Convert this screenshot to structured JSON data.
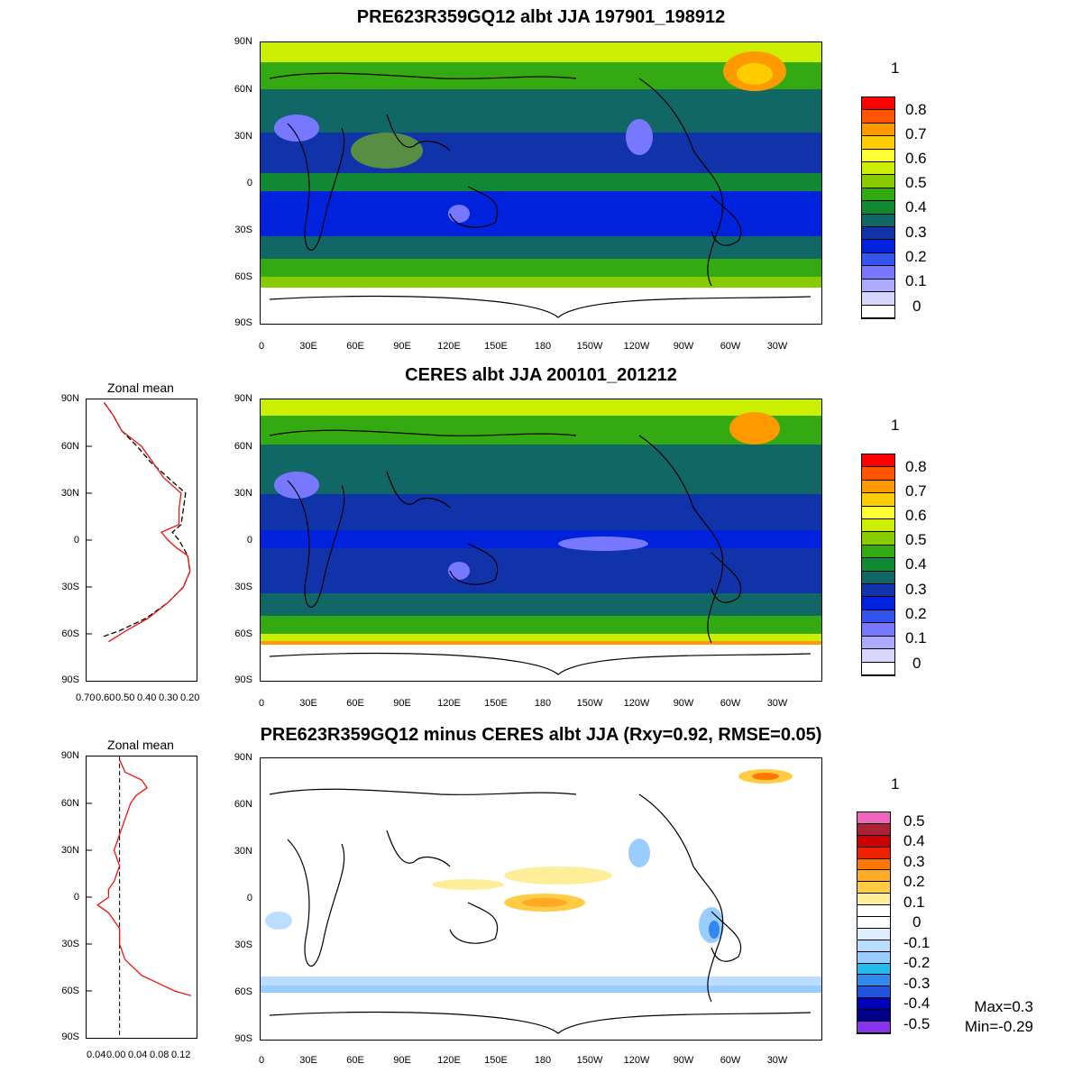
{
  "panels": [
    {
      "id": "model",
      "title": "PRE623R359GQ12 albt JJA 197901_198912",
      "unit_label": "1"
    },
    {
      "id": "obs",
      "title": "CERES albt JJA 200101_201212",
      "unit_label": "1",
      "zonal_title": "Zonal mean"
    },
    {
      "id": "diff",
      "title": "PRE623R359GQ12 minus CERES albt JJA (Rxy=0.92, RMSE=0.05)",
      "unit_label": "1",
      "zonal_title": "Zonal mean",
      "stats": {
        "max": "Max=0.3",
        "min": "Min=-0.29"
      }
    }
  ],
  "lat_ticks": [
    "90N",
    "60N",
    "30N",
    "0",
    "30S",
    "60S",
    "90S"
  ],
  "lon_ticks": [
    "0",
    "30E",
    "60E",
    "90E",
    "120E",
    "150E",
    "180",
    "150W",
    "120W",
    "90W",
    "60W",
    "30W"
  ],
  "zonal_x_ticks_obs": [
    "0.70",
    "0.60",
    "0.50",
    "0.40",
    "0.30",
    "0.20"
  ],
  "zonal_x_ticks_diff": [
    "0.04",
    "0.00",
    "0.04",
    "0.08",
    "0.12"
  ],
  "colorbar_abs": {
    "labels": [
      "0.8",
      "0.7",
      "0.6",
      "0.5",
      "0.4",
      "0.3",
      "0.2",
      "0.1",
      "0"
    ],
    "colors": [
      "#ff0000",
      "#ff5500",
      "#ff9900",
      "#ffcc00",
      "#ffff33",
      "#ccee00",
      "#88cc00",
      "#33aa11",
      "#118833",
      "#116666",
      "#1133aa",
      "#0022dd",
      "#3355ee",
      "#7777ff",
      "#aaaaff",
      "#d6d6ff",
      "#ffffff"
    ]
  },
  "colorbar_diff": {
    "labels": [
      "0.5",
      "0.4",
      "0.3",
      "0.2",
      "0.1",
      "0",
      "-0.1",
      "-0.2",
      "-0.3",
      "-0.4",
      "-0.5"
    ],
    "colors": [
      "#ee66bb",
      "#aa2233",
      "#cc0000",
      "#ee2200",
      "#ff7700",
      "#ffaa22",
      "#ffcc44",
      "#ffee99",
      "#ffffff",
      "#ffffff",
      "#ddeeff",
      "#bbddff",
      "#99ccff",
      "#22bbee",
      "#3388ee",
      "#2255dd",
      "#0000bb",
      "#000088",
      "#8833ee"
    ]
  },
  "chart_data": {
    "type": "line",
    "title": "Zonal mean",
    "series": [
      {
        "lat": [
          88,
          80,
          70,
          60,
          50,
          40,
          30,
          20,
          10,
          5,
          0,
          -5,
          -10,
          -20,
          -30,
          -40,
          -50,
          -58,
          -62
        ],
        "values": [
          0.62,
          0.58,
          0.54,
          0.47,
          0.41,
          0.33,
          0.25,
          0.26,
          0.27,
          0.31,
          0.28,
          0.26,
          0.24,
          0.23,
          0.26,
          0.33,
          0.43,
          0.55,
          0.63
        ]
      },
      {
        "lat": [
          88,
          80,
          70,
          60,
          50,
          40,
          30,
          20,
          10,
          5,
          0,
          -5,
          -10,
          -20,
          -30,
          -40,
          -50,
          -58,
          -65
        ],
        "values": [
          0.62,
          0.58,
          0.54,
          0.45,
          0.4,
          0.35,
          0.27,
          0.28,
          0.28,
          0.36,
          0.33,
          0.29,
          0.24,
          0.23,
          0.26,
          0.33,
          0.42,
          0.52,
          0.6
        ]
      }
    ],
    "diff_series": {
      "lat": [
        88,
        80,
        75,
        70,
        65,
        60,
        50,
        40,
        30,
        20,
        10,
        5,
        0,
        -5,
        -10,
        -20,
        -30,
        -40,
        -50,
        -55,
        -60,
        -63
      ],
      "values": [
        0.0,
        0.01,
        0.04,
        0.05,
        0.03,
        0.02,
        0.01,
        0.0,
        -0.01,
        0.0,
        -0.01,
        -0.02,
        -0.02,
        -0.04,
        -0.02,
        0.0,
        0.0,
        0.01,
        0.04,
        0.07,
        0.1,
        0.13
      ]
    },
    "xlim_obs": [
      0.7,
      0.2
    ],
    "xlim_diff": [
      -0.06,
      0.14
    ],
    "ylim": [
      -90,
      90
    ]
  }
}
